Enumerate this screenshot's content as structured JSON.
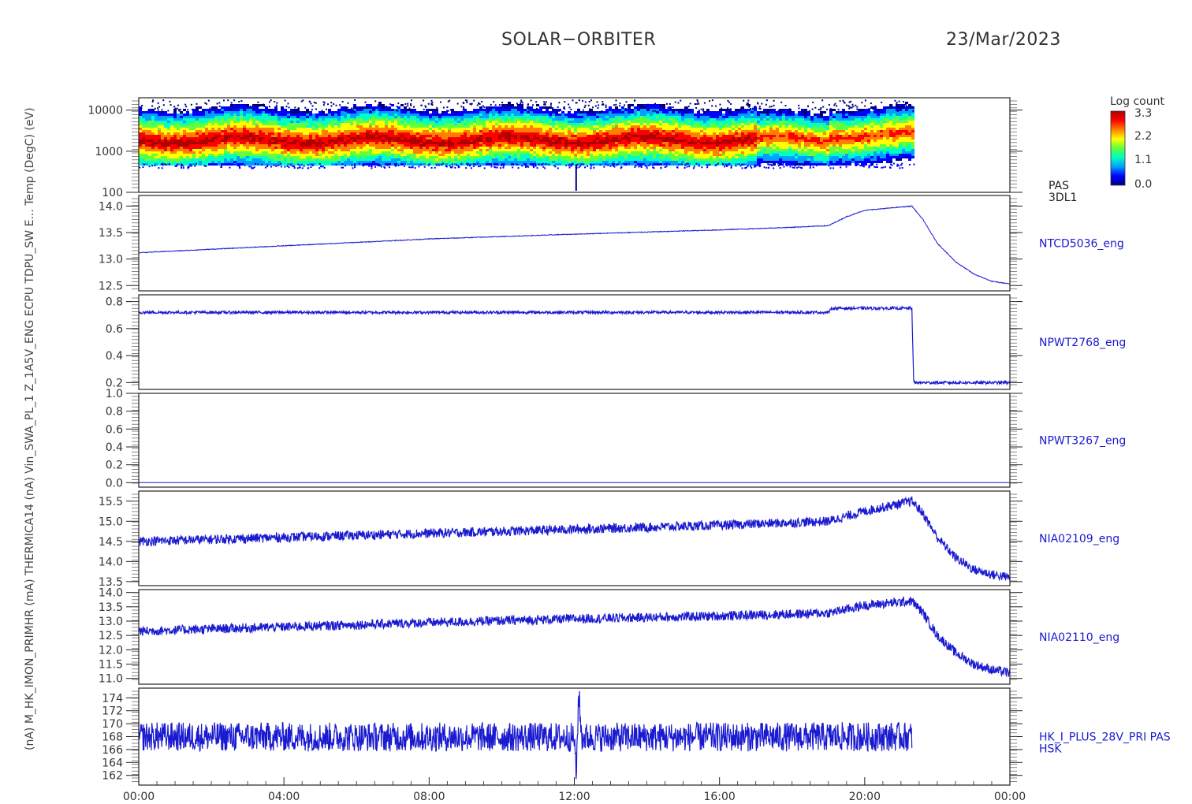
{
  "header": {
    "mission": "SOLAR−ORBITER",
    "date": "23/Mar/2023"
  },
  "y_axis_overlap_text": "(nA) M_HK_IMON_PRIMHR (mA) THERMICA14 (nA) Vin_SWA_PL_1 Z_1A5V_ENG ECPU TDPU_SW E... Temp (DegC) (eV)",
  "colorbar": {
    "label": "Log count",
    "ticks": [
      "3.3",
      "2.2",
      "1.1",
      "0.0"
    ]
  },
  "time_axis": {
    "ticks": [
      "00:00",
      "04:00",
      "08:00",
      "12:00",
      "16:00",
      "20:00",
      "00:00"
    ]
  },
  "chart_data": [
    {
      "type": "heatmap",
      "name": "PAS",
      "label": [
        "PAS",
        "3DL1"
      ],
      "y_scale": "log",
      "ylim": [
        100,
        20000
      ],
      "yticks": [
        "10000",
        "1000",
        "100"
      ],
      "colormap": [
        "#00007f",
        "#0000ff",
        "#00a0ff",
        "#00ffc0",
        "#60ff40",
        "#ffff00",
        "#ff8000",
        "#ff0000",
        "#b00000"
      ],
      "data_end_hour": 21.35,
      "peak_energy_ev": 2000
    },
    {
      "type": "line",
      "name": "NTCD5036_eng",
      "label": [
        "NTCD5036_eng"
      ],
      "ylim": [
        12.4,
        14.2
      ],
      "yticks": [
        "14.0",
        "13.5",
        "13.0",
        "12.5"
      ],
      "noise": 0.004,
      "points": [
        [
          0,
          13.12
        ],
        [
          4,
          13.25
        ],
        [
          8,
          13.38
        ],
        [
          12,
          13.47
        ],
        [
          16,
          13.55
        ],
        [
          18,
          13.6
        ],
        [
          19,
          13.63
        ],
        [
          19.5,
          13.8
        ],
        [
          20,
          13.92
        ],
        [
          21.3,
          14.0
        ],
        [
          21.6,
          13.75
        ],
        [
          22,
          13.3
        ],
        [
          22.5,
          12.95
        ],
        [
          23,
          12.72
        ],
        [
          23.5,
          12.58
        ],
        [
          24,
          12.53
        ]
      ]
    },
    {
      "type": "line",
      "name": "NPWT2768_eng",
      "label": [
        "NPWT2768_eng"
      ],
      "ylim": [
        0.15,
        0.85
      ],
      "yticks": [
        "0.8",
        "0.6",
        "0.4",
        "0.2"
      ],
      "noise": 0.015,
      "points": [
        [
          0,
          0.72
        ],
        [
          19,
          0.72
        ],
        [
          19.1,
          0.75
        ],
        [
          21.3,
          0.75
        ],
        [
          21.35,
          0.2
        ],
        [
          24,
          0.2
        ]
      ]
    },
    {
      "type": "line",
      "name": "NPWT3267_eng",
      "label": [
        "NPWT3267_eng"
      ],
      "ylim": [
        -0.05,
        1.0
      ],
      "yticks": [
        "1.0",
        "0.8",
        "0.6",
        "0.4",
        "0.2",
        "0.0"
      ],
      "noise": 0.0,
      "points": [
        [
          0,
          0.0
        ],
        [
          24,
          0.0
        ]
      ]
    },
    {
      "type": "line",
      "name": "NIA02109_eng",
      "label": [
        "NIA02109_eng"
      ],
      "ylim": [
        13.4,
        15.75
      ],
      "yticks": [
        "15.5",
        "15.0",
        "14.5",
        "14.0",
        "13.5"
      ],
      "noise": 0.05,
      "points": [
        [
          0,
          14.5
        ],
        [
          4,
          14.6
        ],
        [
          8,
          14.7
        ],
        [
          12,
          14.8
        ],
        [
          16,
          14.9
        ],
        [
          19,
          15.0
        ],
        [
          20,
          15.25
        ],
        [
          21.3,
          15.5
        ],
        [
          21.6,
          15.2
        ],
        [
          22,
          14.6
        ],
        [
          22.5,
          14.1
        ],
        [
          23,
          13.8
        ],
        [
          23.5,
          13.68
        ],
        [
          24,
          13.6
        ]
      ]
    },
    {
      "type": "line",
      "name": "NIA02110_eng",
      "label": [
        "NIA02110_eng"
      ],
      "ylim": [
        10.8,
        14.1
      ],
      "yticks": [
        "14.0",
        "13.5",
        "13.0",
        "12.5",
        "12.0",
        "11.5",
        "11.0"
      ],
      "noise": 0.05,
      "points": [
        [
          0,
          12.65
        ],
        [
          4,
          12.8
        ],
        [
          8,
          12.95
        ],
        [
          12,
          13.08
        ],
        [
          16,
          13.18
        ],
        [
          19,
          13.28
        ],
        [
          20,
          13.55
        ],
        [
          21.3,
          13.7
        ],
        [
          21.6,
          13.3
        ],
        [
          22,
          12.5
        ],
        [
          22.5,
          11.9
        ],
        [
          23,
          11.5
        ],
        [
          23.5,
          11.3
        ],
        [
          24,
          11.2
        ]
      ]
    },
    {
      "type": "line",
      "name": "HK_I_PLUS_28V_PRI PAS HSK",
      "label": [
        "HK_I_PLUS_28V_PRI PAS",
        "HSK"
      ],
      "ylim": [
        160.5,
        175.5
      ],
      "yticks": [
        "174",
        "172",
        "170",
        "168",
        "166",
        "164",
        "162"
      ],
      "noise": 0.15,
      "points": [
        [
          0,
          168.0
        ],
        [
          12.0,
          167.9
        ],
        [
          12.05,
          161.5
        ],
        [
          12.12,
          175.0
        ],
        [
          12.2,
          167.9
        ],
        [
          21.3,
          168.0
        ]
      ]
    }
  ]
}
